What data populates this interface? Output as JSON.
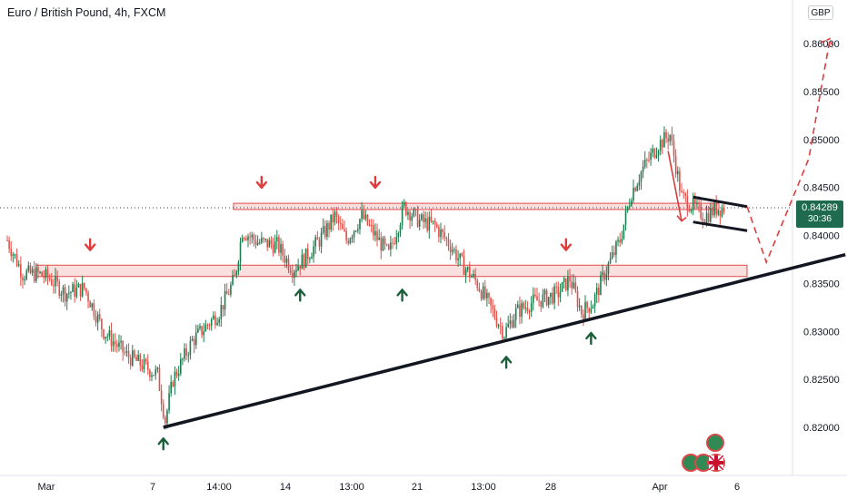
{
  "header": {
    "symbol_title": "Euro / British Pound, 4h, FXCM",
    "currency": "GBP"
  },
  "price_tag": {
    "price": "0.84289",
    "countdown": "30:36",
    "color": "#1e6b4f"
  },
  "colors": {
    "up": "#1e7d4f",
    "down": "#e0504a",
    "zone_fill": "#f6c9c9",
    "zone_border": "#e04a4a",
    "trendline": "#131722",
    "arrow_up": "#1b5e3a",
    "arrow_down": "#e03b3b"
  },
  "badges": [
    "badge-green-1",
    "badge-green-2",
    "badge-uk-flag",
    "badge-green-3"
  ],
  "chart_data": {
    "type": "candlestick",
    "title": "Euro / British Pound, 4h, FXCM",
    "ylabel": "GBP",
    "ylim": [
      0.819,
      0.864
    ],
    "y_ticks": [
      "0.86000",
      "0.85500",
      "0.85000",
      "0.84500",
      "0.84000",
      "0.83500",
      "0.83000",
      "0.82500",
      "0.82000"
    ],
    "x_ticks": [
      "Mar",
      "7",
      "14:00",
      "14",
      "13:00",
      "21",
      "13:00",
      "28",
      "Apr",
      "6"
    ],
    "current_price": 0.84289,
    "price_anchors": [
      [
        0,
        0.8395
      ],
      [
        8,
        0.836
      ],
      [
        16,
        0.836
      ],
      [
        22,
        0.8355
      ],
      [
        30,
        0.834
      ],
      [
        40,
        0.8345
      ],
      [
        50,
        0.83
      ],
      [
        62,
        0.8275
      ],
      [
        70,
        0.8265
      ],
      [
        78,
        0.8255
      ],
      [
        82,
        0.8207
      ],
      [
        86,
        0.825
      ],
      [
        96,
        0.829
      ],
      [
        110,
        0.832
      ],
      [
        118,
        0.8355
      ],
      [
        122,
        0.8405
      ],
      [
        130,
        0.8393
      ],
      [
        140,
        0.839
      ],
      [
        148,
        0.8365
      ],
      [
        154,
        0.8375
      ],
      [
        162,
        0.8395
      ],
      [
        170,
        0.842
      ],
      [
        176,
        0.8395
      ],
      [
        184,
        0.842
      ],
      [
        192,
        0.8397
      ],
      [
        198,
        0.838
      ],
      [
        206,
        0.843
      ],
      [
        214,
        0.8415
      ],
      [
        222,
        0.841
      ],
      [
        230,
        0.839
      ],
      [
        236,
        0.837
      ],
      [
        244,
        0.835
      ],
      [
        252,
        0.832
      ],
      [
        258,
        0.8298
      ],
      [
        264,
        0.832
      ],
      [
        272,
        0.833
      ],
      [
        280,
        0.8335
      ],
      [
        286,
        0.834
      ],
      [
        292,
        0.8355
      ],
      [
        298,
        0.832
      ],
      [
        304,
        0.833
      ],
      [
        310,
        0.836
      ],
      [
        318,
        0.8395
      ],
      [
        324,
        0.8445
      ],
      [
        330,
        0.847
      ],
      [
        338,
        0.8495
      ],
      [
        344,
        0.8505
      ],
      [
        350,
        0.844
      ],
      [
        356,
        0.843
      ],
      [
        362,
        0.842
      ],
      [
        368,
        0.8428
      ],
      [
        372,
        0.8429
      ]
    ],
    "resistance_zone": [
      0.8427,
      0.84335
    ],
    "support_zone": [
      0.8361,
      0.8369
    ],
    "trendline": [
      [
        81,
        0.82
      ],
      [
        435,
        0.838
      ]
    ],
    "flag_upper": [
      [
        356,
        0.844
      ],
      [
        384,
        0.843
      ]
    ],
    "flag_lower": [
      [
        356,
        0.8414
      ],
      [
        384,
        0.8405
      ]
    ],
    "projection": [
      [
        384,
        0.843
      ],
      [
        394,
        0.8372
      ],
      [
        416,
        0.848
      ],
      [
        427,
        0.8605
      ]
    ],
    "up_arrow_markers": [
      [
        81,
        0.8195
      ],
      [
        152,
        0.835
      ],
      [
        205,
        0.835
      ],
      [
        259,
        0.828
      ],
      [
        303,
        0.8305
      ]
    ],
    "down_arrow_markers": [
      [
        43,
        0.838
      ],
      [
        132,
        0.8445
      ],
      [
        191,
        0.8445
      ],
      [
        290,
        0.838
      ]
    ],
    "red_arrow_path": [
      [
        343,
        0.8488
      ],
      [
        350,
        0.8415
      ]
    ]
  }
}
